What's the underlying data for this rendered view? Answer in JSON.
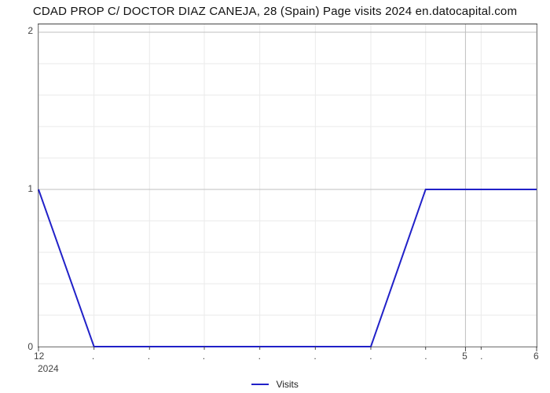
{
  "title": "CDAD PROP C/ DOCTOR DIAZ CANEJA, 28 (Spain) Page visits 2024 en.datocapital.com",
  "chart": {
    "type": "line",
    "background_color": "#ffffff",
    "grid_major_color": "#bfbfbf",
    "grid_minor_color": "#eaeaea",
    "border_color": "#444444",
    "series": {
      "label": "Visits",
      "color": "#2121c8",
      "line_width": 2,
      "x": [
        12,
        12.78,
        13.56,
        14.33,
        15.11,
        15.89,
        16.67,
        17.44,
        18.22,
        19
      ],
      "y": [
        1,
        0,
        0,
        0,
        0,
        0,
        0,
        1,
        1,
        1
      ]
    },
    "x_axis": {
      "min": 12,
      "max": 19,
      "major_ticks": [
        12,
        18,
        19
      ],
      "major_labels": [
        "12",
        "5",
        "6"
      ],
      "minor_ticks": [
        12.78,
        13.56,
        14.33,
        15.11,
        15.89,
        16.67,
        17.44,
        18.22
      ],
      "minor_labels_visible": true,
      "tick_fontsize": 12,
      "below_label": "2024"
    },
    "y_axis": {
      "min": 0,
      "max": 2.05,
      "major_ticks": [
        0,
        1,
        2
      ],
      "major_labels": [
        "0",
        "1",
        "2"
      ],
      "minor_ticks": [
        0.2,
        0.4,
        0.6,
        0.8,
        1.2,
        1.4,
        1.6,
        1.8
      ],
      "tick_fontsize": 12
    },
    "title_fontsize": 15,
    "legend_position": "bottom-center",
    "legend_fontsize": 12
  }
}
